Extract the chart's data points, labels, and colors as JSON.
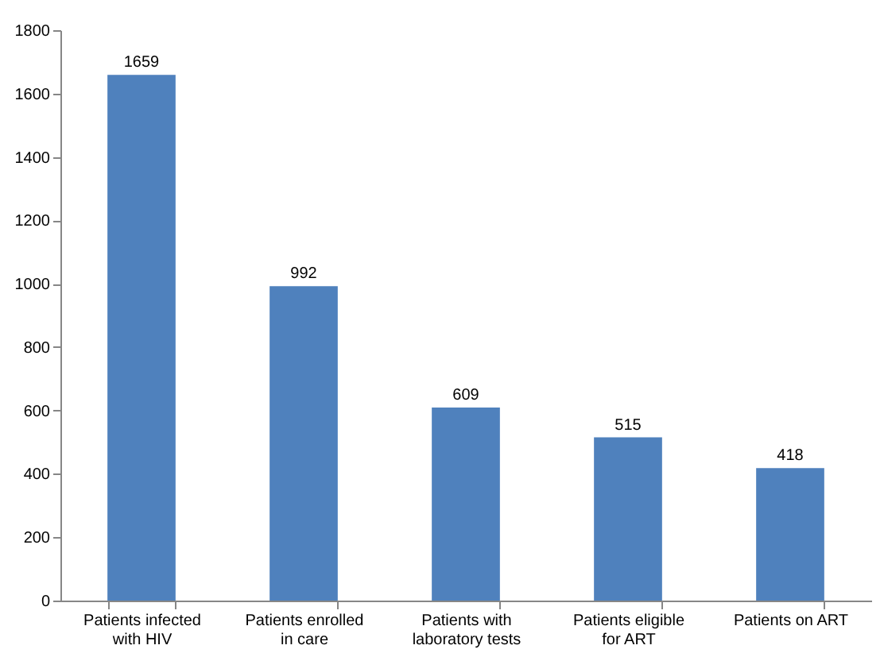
{
  "chart_data": {
    "type": "bar",
    "categories": [
      "Patients infected with HIV",
      "Patients enrolled in care",
      "Patients with laboratory tests",
      "Patients eligible for ART",
      "Patients on ART"
    ],
    "values": [
      1659,
      992,
      609,
      515,
      418
    ],
    "color": "#4f81bd",
    "ylim": [
      0,
      1800
    ],
    "yticks": [
      0,
      200,
      400,
      600,
      800,
      1000,
      1200,
      1400,
      1600,
      1800
    ],
    "grid": false,
    "data_labels": true
  }
}
